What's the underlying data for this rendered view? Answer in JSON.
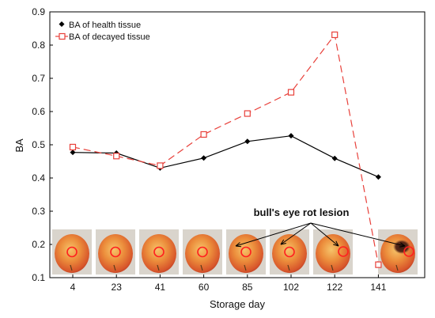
{
  "chart_data": {
    "type": "line",
    "title": "",
    "xlabel": "Storage day",
    "ylabel": "BA",
    "categories": [
      "4",
      "23",
      "41",
      "60",
      "85",
      "102",
      "122",
      "141"
    ],
    "ylim": [
      0.1,
      0.9
    ],
    "yticks": [
      "0.1",
      "0.2",
      "0.3",
      "0.4",
      "0.5",
      "0.6",
      "0.7",
      "0.8",
      "0.9"
    ],
    "grid": false,
    "legend_position": "top-left",
    "series": [
      {
        "name": "BA of health tissue",
        "values": [
          0.477,
          0.475,
          0.43,
          0.46,
          0.51,
          0.527,
          0.459,
          0.403
        ],
        "color": "#000000",
        "marker": "filled-diamond",
        "line_style": "solid"
      },
      {
        "name": "BA of decayed tissue",
        "values": [
          0.493,
          0.466,
          0.437,
          0.531,
          0.594,
          0.658,
          0.831,
          0.139
        ],
        "color": "#e8403a",
        "marker": "open-square",
        "line_style": "dashed"
      }
    ],
    "annotation": "bull's eye rot lesion",
    "inset_images": {
      "description_icon": "apple-photo-icon",
      "count": 9,
      "highlight_color": "#ff2020"
    }
  }
}
